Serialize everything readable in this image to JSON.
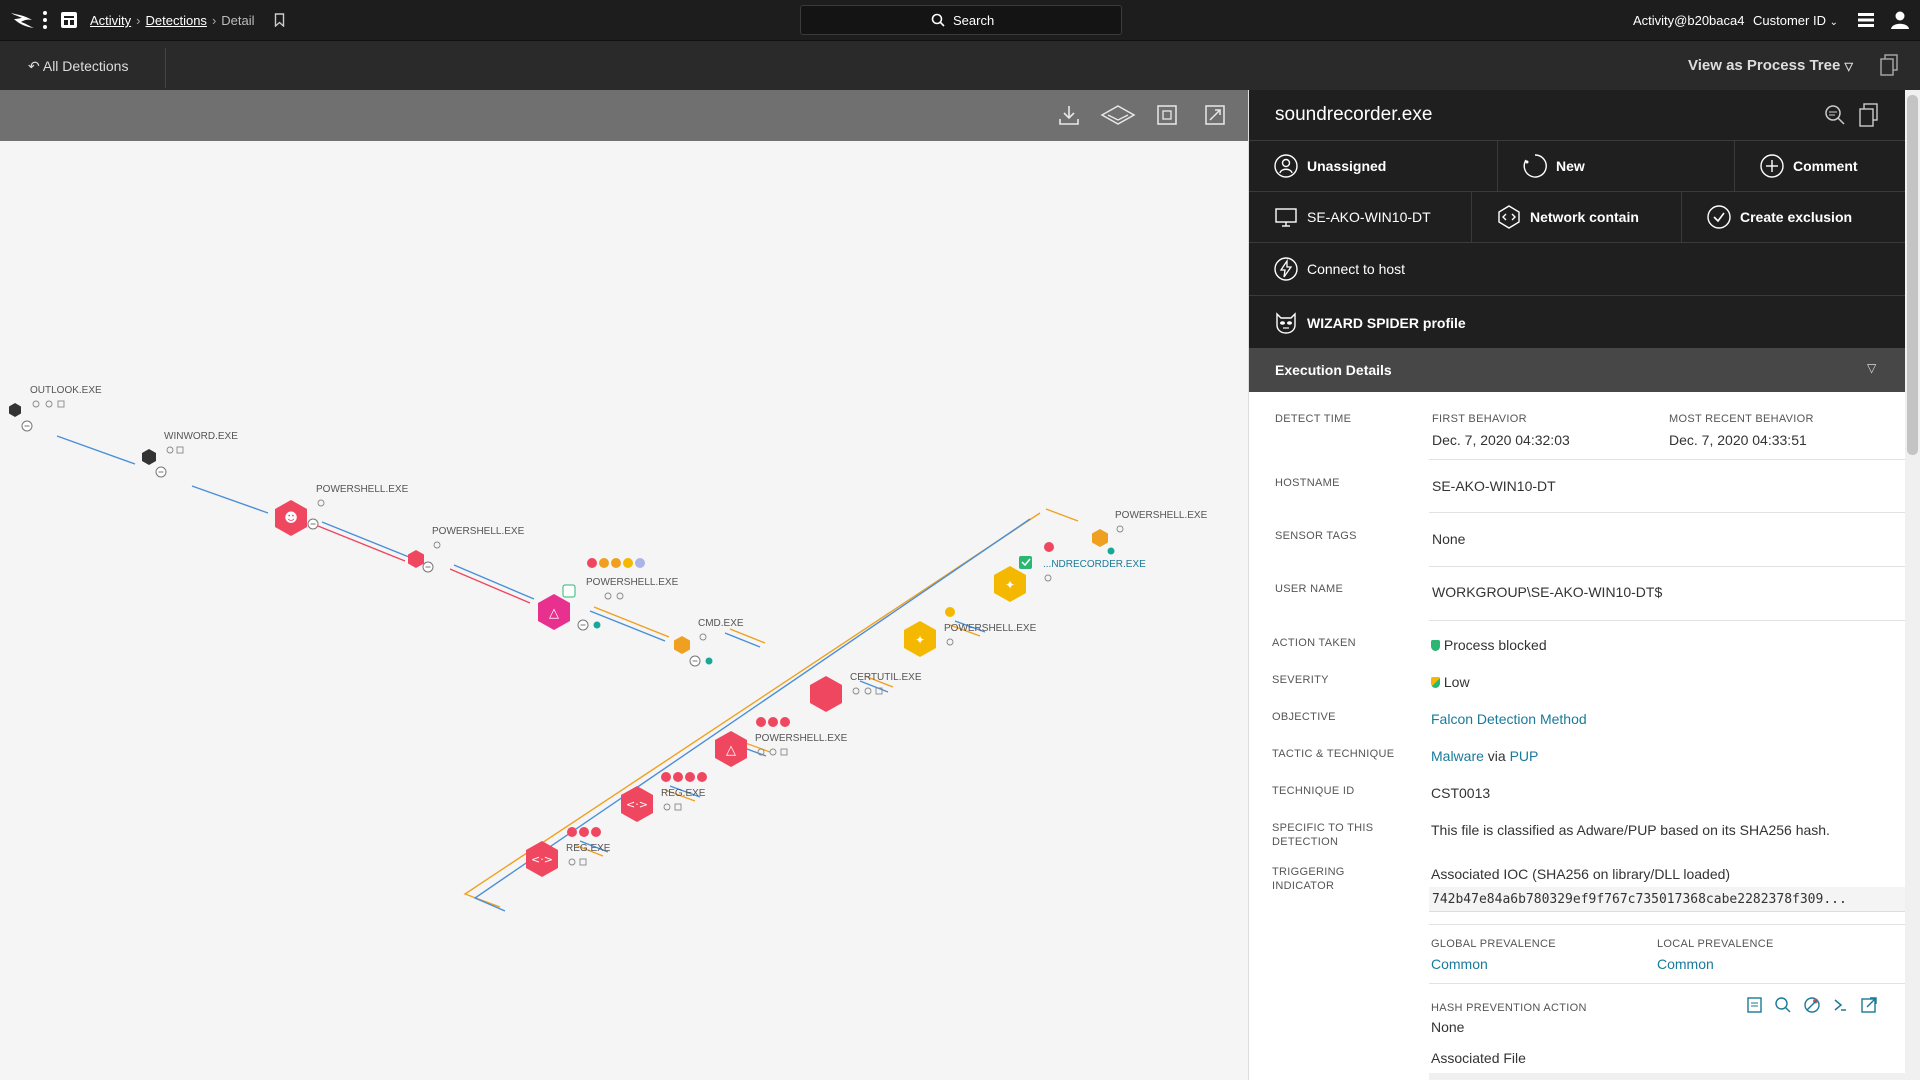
{
  "topbar": {
    "breadcrumb": [
      {
        "label": "Activity",
        "link": true
      },
      {
        "label": "Detections",
        "link": true
      },
      {
        "label": "Detail",
        "link": false
      }
    ],
    "search_label": "Search",
    "user": "Activity@b20baca4",
    "customer": "Customer ID"
  },
  "subbar": {
    "back_label": "All Detections",
    "view_as": "View as Process Tree"
  },
  "tree": {
    "nodes": [
      {
        "label": "OUTLOOK.EXE"
      },
      {
        "label": "WINWORD.EXE"
      },
      {
        "label": "POWERSHELL.EXE"
      },
      {
        "label": "POWERSHELL.EXE"
      },
      {
        "label": "POWERSHELL.EXE"
      },
      {
        "label": "CMD.EXE"
      },
      {
        "label": "CERTUTIL.EXE"
      },
      {
        "label": "POWERSHELL.EXE"
      },
      {
        "label": "REG.EXE"
      },
      {
        "label": "REG.EXE"
      },
      {
        "label": "POWERSHELL.EXE"
      },
      {
        "label": "...NDRECORDER.EXE"
      },
      {
        "label": "POWERSHELL.EXE"
      }
    ]
  },
  "panel": {
    "title": "soundrecorder.exe",
    "actions_row1": [
      {
        "label": "Unassigned",
        "icon": "user-icon"
      },
      {
        "label": "New",
        "icon": "status-icon"
      },
      {
        "label": "Comment",
        "icon": "plus-circle-icon"
      }
    ],
    "actions_row2": [
      {
        "label": "SE-AKO-WIN10-DT",
        "icon": "monitor-icon"
      },
      {
        "label": "Network contain",
        "icon": "network-icon"
      },
      {
        "label": "Create exclusion",
        "icon": "check-circle-icon"
      }
    ],
    "connect_label": "Connect to host",
    "adversary_label": "WIZARD SPIDER profile",
    "exec_title": "Execution Details",
    "labels": {
      "detect_time": "DETECT TIME",
      "first_behavior": "FIRST BEHAVIOR",
      "recent_behavior": "MOST RECENT BEHAVIOR",
      "hostname": "HOSTNAME",
      "sensor_tags": "SENSOR TAGS",
      "user_name": "USER NAME",
      "action_taken": "ACTION TAKEN",
      "severity": "SEVERITY",
      "objective": "OBJECTIVE",
      "tactic": "TACTIC & TECHNIQUE",
      "technique_id": "TECHNIQUE ID",
      "specific_1": "SPECIFIC TO THIS",
      "specific_2": "DETECTION",
      "triggering_1": "TRIGGERING",
      "triggering_2": "INDICATOR",
      "global_prev": "GLOBAL PREVALENCE",
      "local_prev": "LOCAL PREVALENCE",
      "hash_action": "HASH PREVENTION ACTION"
    },
    "values": {
      "first_behavior": "Dec. 7, 2020 04:32:03",
      "recent_behavior": "Dec. 7, 2020 04:33:51",
      "hostname": "SE-AKO-WIN10-DT",
      "sensor_tags": "None",
      "user_name": "WORKGROUP\\SE-AKO-WIN10-DT$",
      "action_taken": "Process blocked",
      "severity": "Low",
      "objective": "Falcon Detection Method",
      "tactic": "Malware",
      "tactic_via": "via",
      "technique": "PUP",
      "technique_id": "CST0013",
      "specific": "This file is classified as Adware/PUP based on its SHA256 hash.",
      "ioc_title": "Associated IOC (SHA256 on library/DLL loaded)",
      "ioc_hash": "742b47e84a6b780329ef9f767c735017368cabe2282378f309...",
      "global_prev": "Common",
      "local_prev": "Common",
      "hash_action": "None",
      "assoc_file": "Associated File"
    }
  },
  "colors": {
    "topbar": "#1d1d1d",
    "node_red": "#ef4760",
    "node_pink": "#e8308f",
    "node_orange": "#f0a020",
    "node_yellow": "#f5b800",
    "node_dark": "#333333",
    "link": "#1a7a9a",
    "blocked_green": "#2bb673"
  }
}
